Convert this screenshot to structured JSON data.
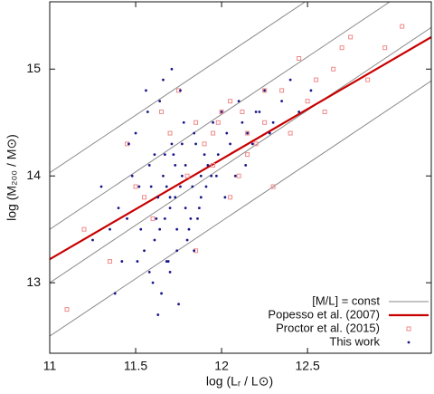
{
  "chart_data": {
    "type": "scatter",
    "x_label": "log (Lᵣ / L⊙)",
    "y_label": "log (M₂₀₀ / M⊙)",
    "xlim": [
      11,
      13.22
    ],
    "ylim": [
      12.34,
      15.63
    ],
    "xticks": [
      11,
      11.5,
      12,
      12.5
    ],
    "yticks": [
      13,
      14,
      15
    ],
    "legend": "lower right",
    "series": [
      {
        "name": "[M/L] = const",
        "kind": "line",
        "color": "#8a8a8a",
        "segments": [
          {
            "x": [
              11,
              13.22
            ],
            "values": [
              14.03,
              16.42
            ]
          },
          {
            "x": [
              11,
              13.22
            ],
            "values": [
              13.5,
              15.89
            ]
          },
          {
            "x": [
              11,
              13.22
            ],
            "values": [
              13.0,
              15.39
            ]
          },
          {
            "x": [
              11,
              13.22
            ],
            "values": [
              12.5,
              14.89
            ]
          }
        ]
      },
      {
        "name": "Popesso et al. (2007)",
        "kind": "line",
        "color": "#c80000",
        "segments": [
          {
            "x": [
              11,
              13.22
            ],
            "values": [
              13.22,
              15.3
            ]
          }
        ]
      },
      {
        "name": "Proctor et al. (2015)",
        "kind": "square",
        "color": "#f08a8a",
        "x": [
          11.1,
          11.2,
          11.35,
          11.45,
          11.55,
          11.65,
          11.75,
          11.85,
          11.95,
          12.05,
          12.15,
          12.25,
          12.35,
          12.45,
          12.55,
          12.65,
          12.75,
          12.85,
          11.9,
          12.0,
          12.1,
          12.2,
          12.3,
          11.8,
          11.7,
          11.6,
          12.4,
          12.5,
          12.6,
          12.05,
          11.95,
          12.15,
          12.25,
          11.85,
          12.7,
          12.95,
          13.05,
          11.5,
          12.12,
          11.98
        ],
        "values": [
          12.75,
          13.5,
          13.2,
          14.3,
          13.8,
          14.6,
          14.8,
          14.5,
          14.4,
          14.7,
          14.2,
          14.5,
          14.8,
          15.1,
          14.9,
          15.0,
          15.3,
          14.9,
          14.3,
          14.6,
          14.0,
          14.3,
          13.9,
          14.0,
          14.4,
          13.6,
          14.4,
          14.7,
          14.6,
          13.8,
          14.1,
          14.4,
          14.8,
          13.3,
          15.2,
          15.2,
          15.4,
          13.9,
          14.6,
          14.5
        ]
      },
      {
        "name": "This work",
        "kind": "dot",
        "color": "#16168a",
        "x": [
          11.45,
          11.52,
          11.58,
          11.61,
          11.63,
          11.66,
          11.68,
          11.7,
          11.72,
          11.74,
          11.76,
          11.79,
          11.82,
          11.85,
          11.88,
          11.55,
          11.6,
          11.65,
          11.7,
          11.75,
          11.8,
          11.5,
          11.57,
          11.64,
          11.71,
          11.78,
          11.84,
          11.9,
          11.95,
          12.0,
          12.05,
          12.1,
          12.15,
          12.2,
          12.25,
          12.3,
          11.4,
          11.35,
          11.3,
          11.25,
          11.48,
          11.53,
          11.62,
          11.67,
          11.73,
          11.77,
          11.83,
          11.87,
          11.92,
          11.98,
          12.03,
          12.08,
          12.12,
          12.18,
          12.22,
          12.28,
          12.35,
          12.4,
          12.45,
          12.52,
          11.58,
          11.63,
          11.69,
          11.74,
          11.81,
          11.86,
          11.66,
          11.71,
          11.76,
          11.56,
          11.61,
          11.68,
          11.79,
          11.91,
          11.46,
          11.42,
          11.38,
          11.94,
          12.02,
          12.14,
          11.64,
          11.7,
          11.73,
          11.59,
          11.67,
          11.84,
          11.88,
          11.97,
          11.51,
          11.77
        ],
        "values": [
          13.6,
          13.9,
          14.1,
          13.4,
          13.8,
          14.0,
          13.2,
          13.7,
          14.2,
          13.5,
          13.9,
          14.1,
          13.6,
          14.3,
          14.0,
          13.3,
          13.0,
          12.9,
          13.1,
          12.8,
          13.4,
          14.4,
          14.6,
          14.7,
          14.3,
          14.5,
          14.4,
          14.2,
          14.5,
          14.6,
          14.3,
          14.7,
          14.4,
          14.6,
          14.8,
          14.5,
          13.7,
          13.5,
          13.9,
          13.4,
          14.0,
          13.5,
          13.6,
          14.2,
          13.8,
          14.0,
          13.9,
          13.7,
          14.1,
          14.2,
          14.4,
          14.0,
          14.5,
          14.3,
          14.6,
          14.4,
          14.7,
          14.9,
          14.6,
          14.8,
          13.1,
          12.7,
          13.2,
          13.3,
          13.5,
          13.6,
          14.9,
          15.0,
          14.8,
          14.8,
          14.2,
          13.9,
          13.7,
          13.9,
          14.3,
          13.2,
          12.9,
          14.0,
          13.8,
          14.1,
          13.5,
          13.8,
          14.1,
          13.9,
          13.6,
          13.3,
          13.8,
          14.0,
          13.2,
          14.3
        ]
      }
    ]
  }
}
